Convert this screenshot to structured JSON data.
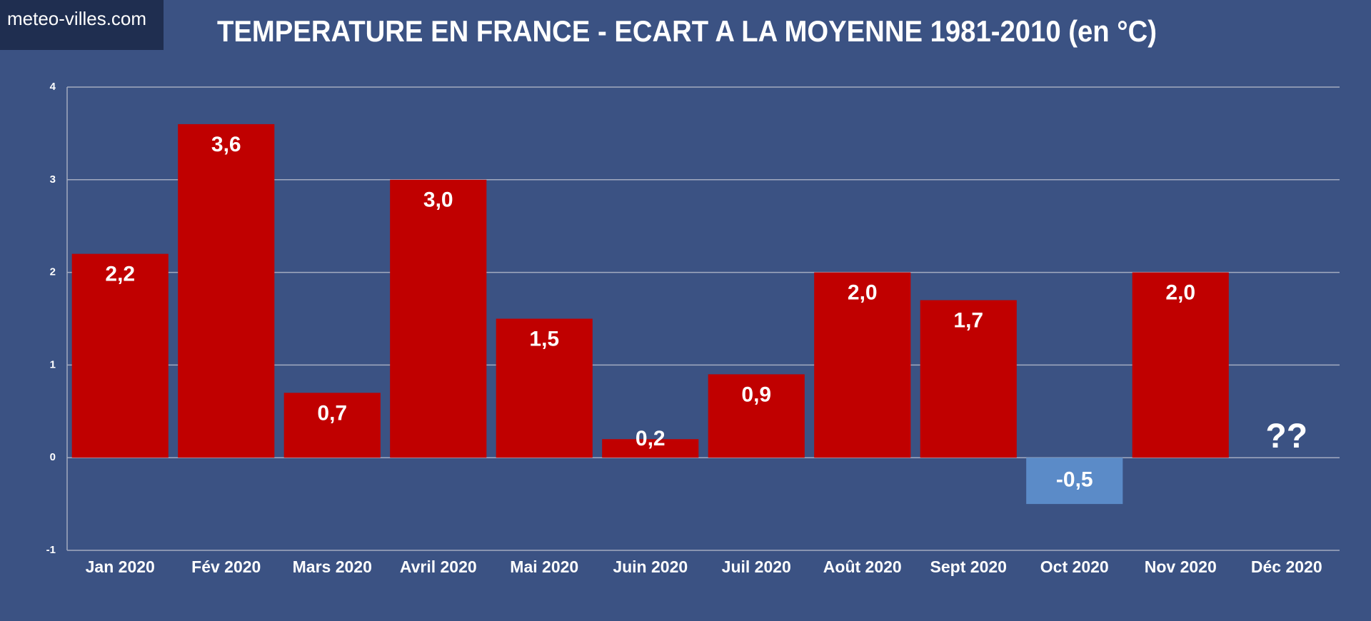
{
  "logo": "meteo-villes.com",
  "chart_data": {
    "type": "bar",
    "title": "TEMPERATURE EN FRANCE - ECART A LA MOYENNE 1981-2010 (en °C)",
    "categories": [
      "Jan 2020",
      "Fév 2020",
      "Mars 2020",
      "Avril 2020",
      "Mai 2020",
      "Juin 2020",
      "Juil 2020",
      "Août 2020",
      "Sept 2020",
      "Oct 2020",
      "Nov 2020",
      "Déc 2020"
    ],
    "values": [
      2.2,
      3.6,
      0.7,
      3.0,
      1.5,
      0.2,
      0.9,
      2.0,
      1.7,
      -0.5,
      2.0,
      null
    ],
    "value_labels": [
      "2,2",
      "3,6",
      "0,7",
      "3,0",
      "1,5",
      "0,2",
      "0,9",
      "2,0",
      "1,7",
      "-0,5",
      "2,0",
      "??"
    ],
    "color": "#c00000",
    "negative_color": "#5b8bc8",
    "ylim": [
      -1,
      4
    ],
    "yticks": [
      -1,
      0,
      1,
      2,
      3,
      4
    ],
    "grid": true
  }
}
